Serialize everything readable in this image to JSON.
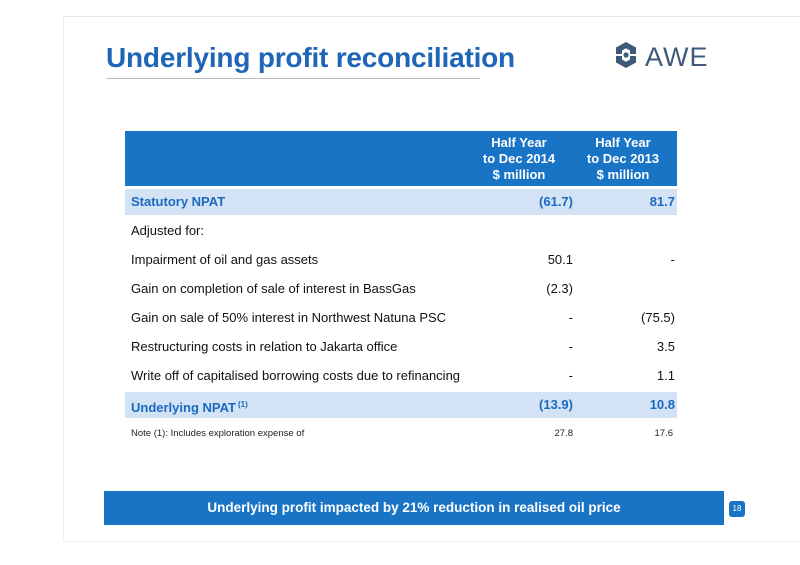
{
  "slide": {
    "title": "Underlying profit reconciliation",
    "logo_text": "AWE",
    "page_number": "18",
    "banner": "Underlying profit impacted by 21% reduction in realised oil price"
  },
  "table": {
    "columns": [
      {
        "line1": "Half Year",
        "line2": "to Dec 2014",
        "line3": "$ million"
      },
      {
        "line1": "Half Year",
        "line2": "to Dec 2013",
        "line3": "$ million"
      }
    ],
    "rows": [
      {
        "label": "Statutory NPAT",
        "v1": "(61.7)",
        "v2": "81.7"
      },
      {
        "label": "Adjusted for:",
        "v1": "",
        "v2": ""
      },
      {
        "label": "Impairment of oil and gas assets",
        "v1": "50.1",
        "v2": "-"
      },
      {
        "label": "Gain on completion of sale of interest in BassGas",
        "v1": "(2.3)",
        "v2": ""
      },
      {
        "label": "Gain on sale of 50% interest in Northwest Natuna PSC",
        "v1": "-",
        "v2": "(75.5)"
      },
      {
        "label": "Restructuring costs in relation to Jakarta office",
        "v1": "-",
        "v2": "3.5"
      },
      {
        "label": "Write off of capitalised borrowing costs due to refinancing",
        "v1": "-",
        "v2": "1.1"
      },
      {
        "label": "Underlying NPAT",
        "footnote": "(1)",
        "v1": "(13.9)",
        "v2": "10.8"
      }
    ],
    "note": {
      "label": "Note (1): Includes exploration expense of",
      "v1": "27.8",
      "v2": "17.6"
    }
  },
  "colors": {
    "title": "#1f66b6",
    "header_bg": "#1a74c6",
    "highlight_row_bg": "#d3e3f5",
    "highlight_row_text": "#1a6ac0",
    "logo": "#3f5a78"
  }
}
